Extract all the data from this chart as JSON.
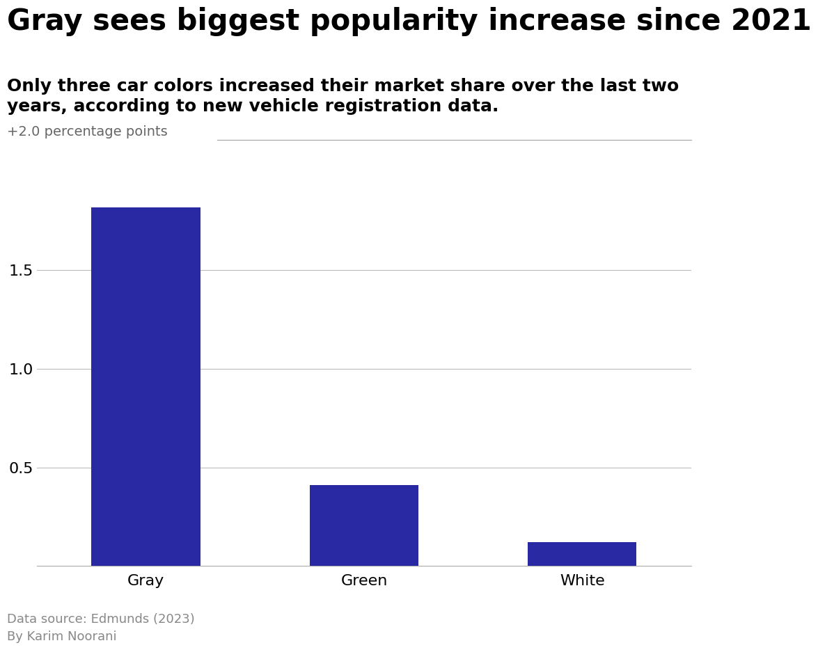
{
  "title": "Gray sees biggest popularity increase since 2021",
  "subtitle": "Only three car colors increased their market share over the last two\nyears, according to new vehicle registration data.",
  "ylabel_annotation": "+2.0 percentage points",
  "categories": [
    "Gray",
    "Green",
    "White"
  ],
  "values": [
    1.82,
    0.41,
    0.12
  ],
  "bar_color": "#2929a3",
  "yticks": [
    0.5,
    1.0,
    1.5
  ],
  "ylim": [
    0,
    2.05
  ],
  "footnote_line1": "Data source: Edmunds (2023)",
  "footnote_line2": "By Karim Noorani",
  "background_color": "#ffffff",
  "title_fontsize": 30,
  "subtitle_fontsize": 18,
  "tick_label_fontsize": 16,
  "annotation_fontsize": 14,
  "footnote_fontsize": 13,
  "bar_width": 0.5
}
